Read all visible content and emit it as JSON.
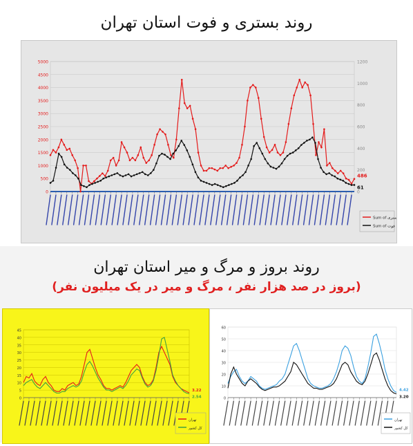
{
  "header": {
    "title": "روند بستری و فوت استان تهران"
  },
  "section2": {
    "title": "روند بروز و مرگ و میر استان تهران",
    "subtitle": "(بروز در صد هزار نفر ، مرگ و میر در یک میلیون نفر)"
  },
  "colors": {
    "red": "#e41a1a",
    "black": "#111111",
    "yellow_bg": "#f8f51a",
    "blue": "#3aa0e0",
    "green": "#40a040"
  },
  "chart_data": [
    {
      "type": "line",
      "ylim": [
        0,
        5000
      ],
      "y2lim": [
        0,
        1200
      ],
      "yticks": [
        0,
        500,
        1000,
        1500,
        2000,
        2500,
        3000,
        3500,
        4000,
        4500,
        5000
      ],
      "y2ticks": [
        0,
        200,
        400,
        600,
        800,
        1000,
        1200
      ],
      "grid": true,
      "legend_position": "right",
      "end_labels": [
        "486",
        "61"
      ],
      "series": [
        {
          "name": "Sum of بستری",
          "color": "#e41a1a",
          "axis": "left",
          "values": [
            1400,
            1600,
            1500,
            1700,
            2000,
            1800,
            1600,
            1650,
            1400,
            1200,
            900,
            0,
            1000,
            1000,
            400,
            300,
            400,
            500,
            600,
            700,
            600,
            800,
            1200,
            1300,
            1000,
            1200,
            1900,
            1700,
            1500,
            1200,
            1300,
            1200,
            1400,
            1700,
            1300,
            1100,
            1200,
            1400,
            1800,
            2200,
            2400,
            2300,
            2200,
            1800,
            1400,
            1300,
            2000,
            3200,
            4300,
            3400,
            3200,
            3300,
            2800,
            2400,
            1500,
            1000,
            800,
            800,
            900,
            900,
            850,
            800,
            900,
            900,
            1000,
            900,
            950,
            1000,
            1100,
            1300,
            1800,
            2500,
            3500,
            4000,
            4100,
            4000,
            3600,
            2800,
            2100,
            1700,
            1500,
            1600,
            1800,
            1500,
            1400,
            1500,
            1900,
            2600,
            3200,
            3700,
            4000,
            4300,
            4000,
            4200,
            4100,
            3700,
            2600,
            1400,
            1900,
            1700,
            2400,
            1000,
            1100,
            900,
            800,
            700,
            800,
            700,
            500,
            450,
            300,
            486
          ]
        },
        {
          "name": "Sum of فوت",
          "color": "#111111",
          "axis": "right",
          "values": [
            80,
            100,
            220,
            350,
            320,
            250,
            220,
            200,
            170,
            150,
            120,
            60,
            50,
            40,
            60,
            70,
            80,
            90,
            100,
            120,
            130,
            140,
            150,
            160,
            170,
            150,
            140,
            150,
            160,
            140,
            150,
            160,
            170,
            180,
            160,
            150,
            170,
            200,
            260,
            330,
            350,
            340,
            320,
            300,
            350,
            380,
            420,
            470,
            430,
            380,
            320,
            250,
            180,
            130,
            100,
            90,
            80,
            70,
            60,
            70,
            60,
            50,
            40,
            50,
            60,
            70,
            80,
            100,
            130,
            150,
            180,
            240,
            300,
            420,
            450,
            400,
            350,
            300,
            260,
            230,
            220,
            210,
            230,
            260,
            300,
            330,
            350,
            360,
            380,
            400,
            430,
            450,
            470,
            480,
            500,
            450,
            300,
            220,
            180,
            160,
            170,
            150,
            140,
            120,
            110,
            100,
            80,
            70,
            60,
            61
          ]
        }
      ]
    },
    {
      "type": "line",
      "ylim": [
        0,
        45
      ],
      "yticks": [
        0,
        5,
        10,
        15,
        20,
        25,
        30,
        35,
        40,
        45
      ],
      "grid": true,
      "legend_position": "bottom-right",
      "end_labels": [
        "3.22",
        "2.54"
      ],
      "series": [
        {
          "name": "تهران",
          "color": "#e41a1a",
          "values": [
            10,
            14,
            13,
            16,
            11,
            9,
            8,
            12,
            14,
            10,
            8,
            5,
            4,
            4,
            6,
            5,
            8,
            9,
            10,
            8,
            9,
            14,
            22,
            30,
            32,
            26,
            20,
            15,
            12,
            8,
            6,
            6,
            5,
            6,
            7,
            8,
            7,
            10,
            14,
            18,
            20,
            22,
            20,
            14,
            10,
            8,
            9,
            12,
            20,
            30,
            34,
            30,
            26,
            22,
            14,
            10,
            8,
            6,
            5,
            4,
            3.22
          ]
        },
        {
          "name": "کل کشور",
          "color": "#40a040",
          "values": [
            8,
            10,
            11,
            12,
            9,
            7,
            6,
            8,
            10,
            8,
            6,
            4,
            3,
            3,
            4,
            4,
            6,
            7,
            8,
            7,
            8,
            11,
            17,
            22,
            24,
            21,
            17,
            13,
            10,
            7,
            5,
            5,
            4,
            5,
            6,
            7,
            6,
            8,
            11,
            15,
            17,
            19,
            18,
            13,
            9,
            7,
            8,
            11,
            18,
            28,
            39,
            40,
            32,
            24,
            15,
            11,
            8,
            6,
            4,
            3,
            2.54
          ]
        }
      ]
    },
    {
      "type": "line",
      "ylim": [
        0,
        60
      ],
      "yticks": [
        0,
        10,
        20,
        30,
        40,
        50,
        60
      ],
      "grid": true,
      "legend_position": "bottom-right",
      "end_labels": [
        "4.42",
        "3.20"
      ],
      "series": [
        {
          "name": "تهران",
          "color": "#3aa0e0",
          "values": [
            12,
            18,
            22,
            24,
            18,
            14,
            12,
            14,
            18,
            16,
            14,
            10,
            8,
            7,
            8,
            9,
            10,
            11,
            14,
            16,
            20,
            28,
            36,
            44,
            46,
            40,
            32,
            24,
            16,
            12,
            10,
            9,
            8,
            8,
            9,
            10,
            12,
            16,
            22,
            30,
            40,
            44,
            42,
            36,
            26,
            18,
            14,
            12,
            16,
            26,
            38,
            52,
            54,
            46,
            36,
            24,
            16,
            10,
            6,
            4.42
          ]
        },
        {
          "name": "کل کشور",
          "color": "#111111",
          "values": [
            8,
            20,
            26,
            20,
            16,
            12,
            10,
            14,
            16,
            14,
            12,
            9,
            7,
            6,
            7,
            8,
            9,
            9,
            10,
            12,
            14,
            18,
            22,
            30,
            28,
            24,
            20,
            16,
            12,
            10,
            8,
            8,
            7,
            7,
            8,
            9,
            10,
            12,
            16,
            22,
            28,
            30,
            28,
            22,
            18,
            14,
            12,
            11,
            14,
            20,
            28,
            36,
            38,
            32,
            24,
            16,
            10,
            6,
            4,
            3.2
          ]
        }
      ]
    }
  ]
}
